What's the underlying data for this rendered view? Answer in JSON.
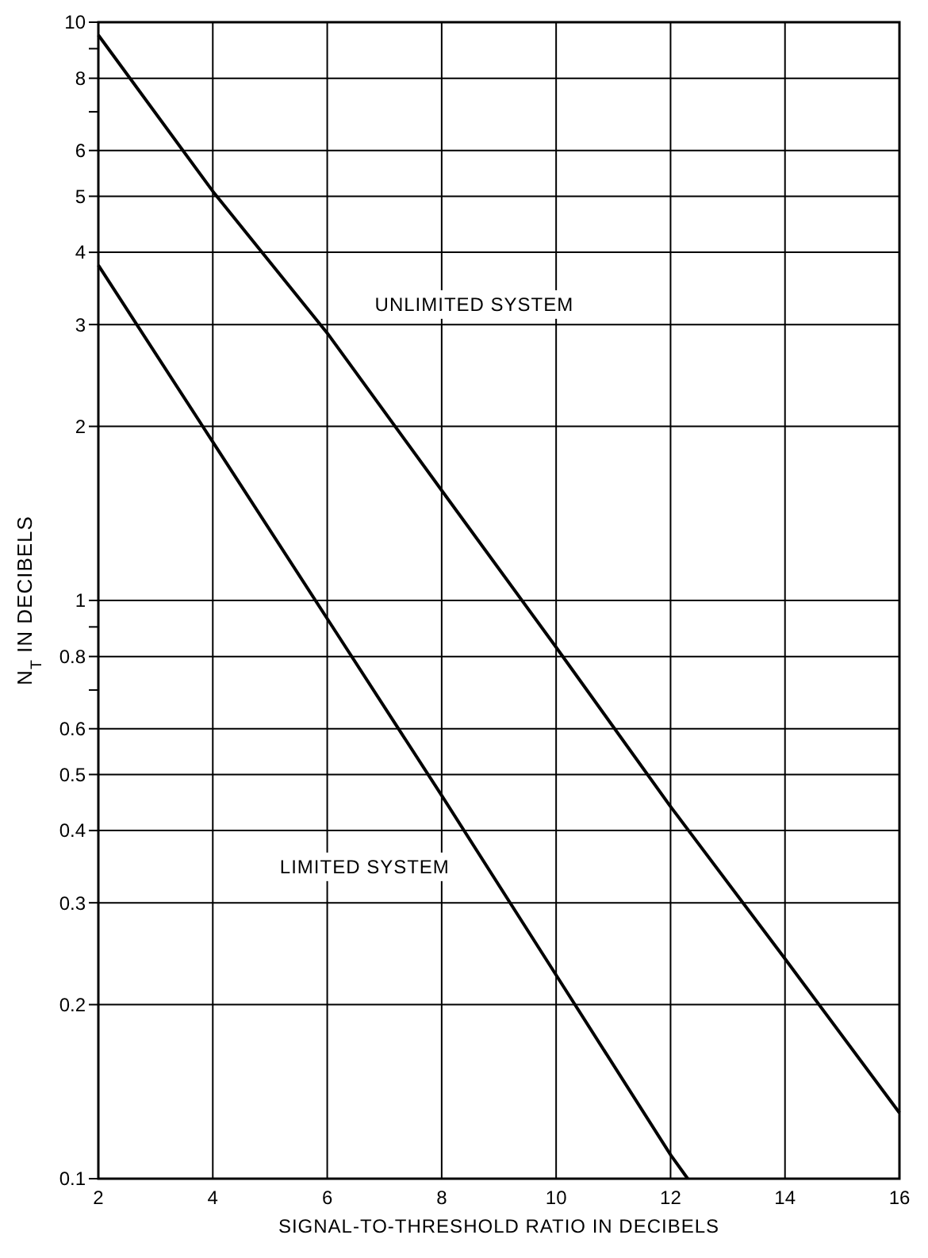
{
  "chart_data": {
    "type": "line",
    "xlabel": "SIGNAL-TO-THRESHOLD RATIO IN DECIBELS",
    "ylabel": "N$_{T}$ IN DECIBELS",
    "series": [
      {
        "name": "UNLIMITED SYSTEM",
        "color": "#000000",
        "x": [
          2,
          4,
          6,
          8,
          10,
          12,
          14,
          16
        ],
        "values": [
          9.5,
          5.1,
          2.9,
          1.55,
          0.83,
          0.44,
          0.24,
          0.13
        ]
      },
      {
        "name": "LIMITED SYSTEM",
        "color": "#000000",
        "x": [
          2,
          4,
          6,
          8,
          10,
          12,
          12.3
        ],
        "values": [
          3.8,
          1.88,
          0.93,
          0.46,
          0.225,
          0.11,
          0.1
        ]
      }
    ],
    "xlim": [
      2,
      16
    ],
    "xticks": [
      2,
      4,
      6,
      8,
      10,
      12,
      14,
      16
    ],
    "ylim": [
      0.1,
      10
    ],
    "log": true,
    "yticks": [
      0.1,
      0.2,
      0.3,
      0.4,
      0.5,
      0.6,
      {
        "value": 0.7,
        "label": null
      },
      0.8,
      {
        "value": 0.9,
        "label": null
      },
      1,
      2,
      3,
      4,
      5,
      6,
      {
        "value": 7,
        "label": null
      },
      8,
      {
        "value": 9,
        "label": null
      },
      10
    ],
    "grid": true,
    "legend": false,
    "marker": "none",
    "line_style": "solid"
  }
}
